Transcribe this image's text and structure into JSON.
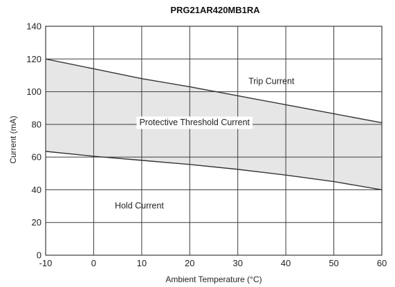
{
  "chart_data": {
    "type": "line",
    "title": "PRG21AR420MB1RA",
    "xlabel": "Ambient Temperature (°C)",
    "ylabel": "Current (mA)",
    "xlim": [
      -10,
      60
    ],
    "ylim": [
      0,
      140
    ],
    "xticks": [
      -10,
      0,
      10,
      20,
      30,
      40,
      50,
      60
    ],
    "yticks": [
      0,
      20,
      40,
      60,
      80,
      100,
      120,
      140
    ],
    "grid": true,
    "series": [
      {
        "name": "Trip Current",
        "x": [
          -10,
          0,
          10,
          20,
          30,
          40,
          50,
          60
        ],
        "y": [
          120,
          114,
          108,
          103,
          97.5,
          92,
          86.5,
          81
        ]
      },
      {
        "name": "Hold Current",
        "x": [
          -10,
          0,
          10,
          20,
          30,
          40,
          50,
          60
        ],
        "y": [
          63.5,
          60.5,
          58,
          55.5,
          52.5,
          49,
          45,
          40
        ]
      }
    ],
    "annotations": [
      {
        "text": "Trip Current",
        "x": 37,
        "y": 106
      },
      {
        "text": "Protective Threshold Current",
        "x": 21,
        "y": 81
      },
      {
        "text": "Hold Current",
        "x": 9.5,
        "y": 30
      }
    ],
    "shaded_region": {
      "between": [
        "Trip Current",
        "Hold Current"
      ],
      "color": "#e6e6e6"
    }
  }
}
